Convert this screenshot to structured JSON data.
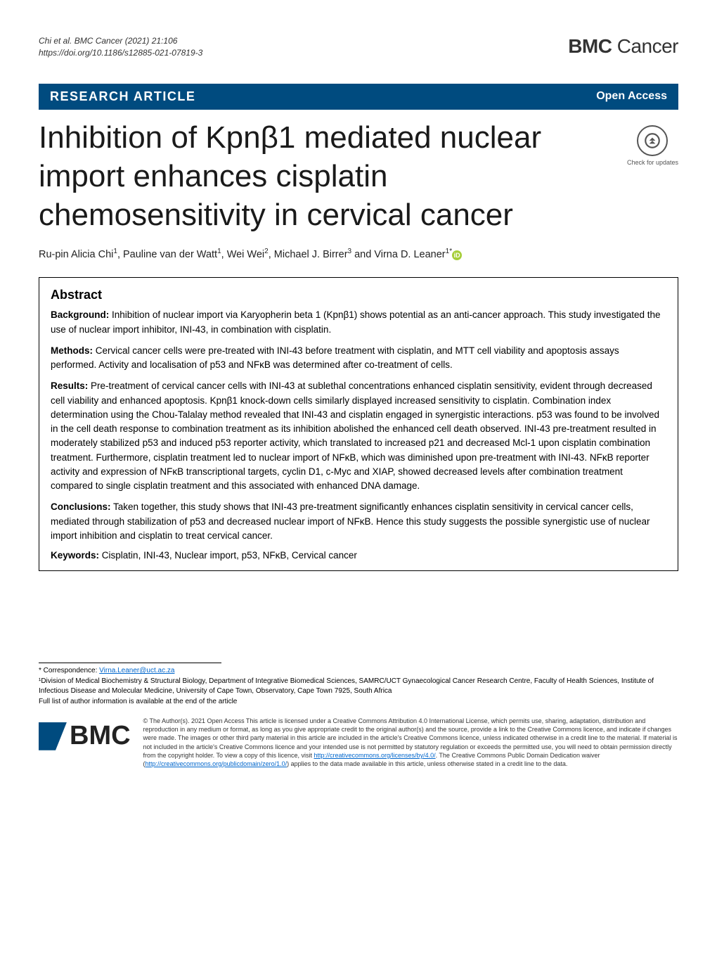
{
  "header": {
    "citation_line1": "Chi et al. BMC Cancer     (2021) 21:106",
    "citation_line2": "https://doi.org/10.1186/s12885-021-07819-3",
    "journal_prefix": "BMC",
    "journal_suffix": " Cancer"
  },
  "article_bar": {
    "type": "RESEARCH ARTICLE",
    "access": "Open Access"
  },
  "title": "Inhibition of Kpnβ1 mediated nuclear import enhances cisplatin chemosensitivity in cervical cancer",
  "check_updates_label": "Check for updates",
  "authors_html": "Ru-pin Alicia Chi<sup>1</sup>, Pauline van der Watt<sup>1</sup>, Wei Wei<sup>2</sup>, Michael J. Birrer<sup>3</sup> and Virna D. Leaner<sup>1*</sup>",
  "abstract": {
    "heading": "Abstract",
    "background_label": "Background:",
    "background": "Inhibition of nuclear import via Karyopherin beta 1 (Kpnβ1) shows potential as an anti-cancer approach. This study investigated the use of nuclear import inhibitor, INI-43, in combination with cisplatin.",
    "methods_label": "Methods:",
    "methods": "Cervical cancer cells were pre-treated with INI-43 before treatment with cisplatin, and MTT cell viability and apoptosis assays performed. Activity and localisation of p53 and NFκB was determined after co-treatment of cells.",
    "results_label": "Results:",
    "results": "Pre-treatment of cervical cancer cells with INI-43 at sublethal concentrations enhanced cisplatin sensitivity, evident through decreased cell viability and enhanced apoptosis. Kpnβ1 knock-down cells similarly displayed increased sensitivity to cisplatin. Combination index determination using the Chou-Talalay method revealed that INI-43 and cisplatin engaged in synergistic interactions. p53 was found to be involved in the cell death response to combination treatment as its inhibition abolished the enhanced cell death observed. INI-43 pre-treatment resulted in moderately stabilized p53 and induced p53 reporter activity, which translated to increased p21 and decreased Mcl-1 upon cisplatin combination treatment. Furthermore, cisplatin treatment led to nuclear import of NFκB, which was diminished upon pre-treatment with INI-43. NFκB reporter activity and expression of NFκB transcriptional targets, cyclin D1, c-Myc and XIAP, showed decreased levels after combination treatment compared to single cisplatin treatment and this associated with enhanced DNA damage.",
    "conclusions_label": "Conclusions:",
    "conclusions": "Taken together, this study shows that INI-43 pre-treatment significantly enhances cisplatin sensitivity in cervical cancer cells, mediated through stabilization of p53 and decreased nuclear import of NFκB. Hence this study suggests the possible synergistic use of nuclear import inhibition and cisplatin to treat cervical cancer.",
    "keywords_label": "Keywords:",
    "keywords": "Cisplatin, INI-43, Nuclear import, p53, NFκB, Cervical cancer"
  },
  "footer": {
    "corr_label": "* Correspondence: ",
    "corr_email": "Virna.Leaner@uct.ac.za",
    "affil1": "¹Division of Medical Biochemistry & Structural Biology, Department of Integrative Biomedical Sciences, SAMRC/UCT Gynaecological Cancer Research Centre, Faculty of Health Sciences, Institute of Infectious Disease and Molecular Medicine, University of Cape Town, Observatory, Cape Town 7925, South Africa",
    "affil_more": "Full list of author information is available at the end of the article",
    "bmc": "BMC",
    "license": "© The Author(s). 2021 Open Access This article is licensed under a Creative Commons Attribution 4.0 International License, which permits use, sharing, adaptation, distribution and reproduction in any medium or format, as long as you give appropriate credit to the original author(s) and the source, provide a link to the Creative Commons licence, and indicate if changes were made. The images or other third party material in this article are included in the article's Creative Commons licence, unless indicated otherwise in a credit line to the material. If material is not included in the article's Creative Commons licence and your intended use is not permitted by statutory regulation or exceeds the permitted use, you will need to obtain permission directly from the copyright holder. To view a copy of this licence, visit ",
    "license_link1": "http://creativecommons.org/licenses/by/4.0/",
    "license2": ". The Creative Commons Public Domain Dedication waiver (",
    "license_link2": "http://creativecommons.org/publicdomain/zero/1.0/",
    "license3": ") applies to the data made available in this article, unless otherwise stated in a credit line to the data."
  },
  "colors": {
    "bar_bg": "#004b7f",
    "orcid": "#a6ce39",
    "link": "#0066cc"
  },
  "typography": {
    "title_fontsize": 44,
    "body_fontsize": 13.5,
    "footer_fontsize": 10
  }
}
